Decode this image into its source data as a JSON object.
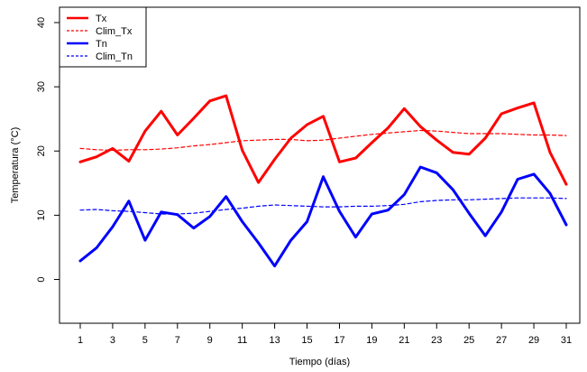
{
  "chart_data": {
    "type": "line",
    "title": "",
    "xlabel": "Tiempo (días)",
    "ylabel": "Temperatura (°C)",
    "xlim": [
      1,
      31
    ],
    "ylim": [
      -5,
      40
    ],
    "x": [
      1,
      2,
      3,
      4,
      5,
      6,
      7,
      8,
      9,
      10,
      11,
      12,
      13,
      14,
      15,
      16,
      17,
      18,
      19,
      20,
      21,
      22,
      23,
      24,
      25,
      26,
      27,
      28,
      29,
      30,
      31
    ],
    "x_ticks": [
      1,
      3,
      5,
      7,
      9,
      11,
      13,
      15,
      17,
      19,
      21,
      23,
      25,
      27,
      29,
      31
    ],
    "y_ticks": [
      0,
      10,
      20,
      30,
      40
    ],
    "grid": false,
    "legend_position": "top-left",
    "series": [
      {
        "name": "Tx",
        "color": "#ff0000",
        "style": "solid",
        "values": [
          18.3,
          19.1,
          20.4,
          18.4,
          23.1,
          26.2,
          22.5,
          25.1,
          27.8,
          28.6,
          20.1,
          15.1,
          18.7,
          22.0,
          24.1,
          25.4,
          18.3,
          18.9,
          21.3,
          23.6,
          26.6,
          23.8,
          21.7,
          19.8,
          19.5,
          22.0,
          25.8,
          26.7,
          27.5,
          19.8,
          14.8
        ]
      },
      {
        "name": "Clim_Tx",
        "color": "#ff0000",
        "style": "dashed",
        "values": [
          20.4,
          20.2,
          20.1,
          20.2,
          20.2,
          20.3,
          20.5,
          20.8,
          21.0,
          21.3,
          21.6,
          21.7,
          21.8,
          21.8,
          21.6,
          21.7,
          22.0,
          22.3,
          22.6,
          22.8,
          23.0,
          23.2,
          23.1,
          22.9,
          22.7,
          22.7,
          22.7,
          22.6,
          22.5,
          22.5,
          22.4
        ]
      },
      {
        "name": "Tn",
        "color": "#0000ff",
        "style": "solid",
        "values": [
          2.9,
          4.9,
          8.2,
          12.2,
          6.1,
          10.5,
          10.1,
          8.0,
          9.8,
          12.9,
          9.0,
          5.7,
          2.1,
          6.1,
          9.0,
          16.0,
          10.6,
          6.6,
          10.2,
          10.8,
          13.2,
          17.5,
          16.6,
          14.0,
          10.3,
          6.8,
          10.5,
          15.6,
          16.4,
          13.4,
          8.5
        ]
      },
      {
        "name": "Clim_Tn",
        "color": "#0000ff",
        "style": "dashed",
        "values": [
          10.8,
          10.9,
          10.7,
          10.6,
          10.4,
          10.2,
          10.2,
          10.3,
          10.6,
          10.9,
          11.1,
          11.4,
          11.6,
          11.5,
          11.4,
          11.3,
          11.3,
          11.4,
          11.4,
          11.5,
          11.7,
          12.1,
          12.3,
          12.4,
          12.4,
          12.5,
          12.6,
          12.7,
          12.7,
          12.7,
          12.6
        ]
      }
    ]
  }
}
